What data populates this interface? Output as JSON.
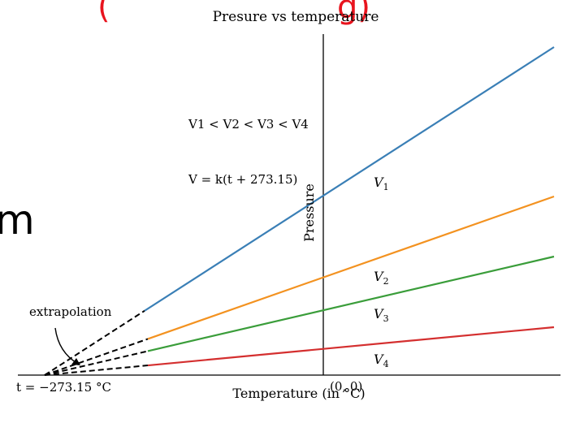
{
  "overlay_text": {
    "top_fragment": "(",
    "top_fragment_right": "g)",
    "side_fragment": "m",
    "color": "#e8141e"
  },
  "chart_data": {
    "type": "line",
    "title": "Presure vs temperature",
    "xlabel": "Temperature (in °C)",
    "ylabel": "Pressure",
    "origin_label": "(0, 0)",
    "zero_point_label": "t = −273.15 °C",
    "annotations": {
      "ordering": "V1 < V2 < V3 < V4",
      "formula": "V = k(t + 273.15)",
      "extrapolation": "extrapolation"
    },
    "x_zero_data": -273.15,
    "series": [
      {
        "name": "V1",
        "color": "#3a7fb6"
      },
      {
        "name": "V2",
        "color": "#f39220"
      },
      {
        "name": "V3",
        "color": "#3a9d3a"
      },
      {
        "name": "V4",
        "color": "#d42f2f"
      }
    ]
  }
}
